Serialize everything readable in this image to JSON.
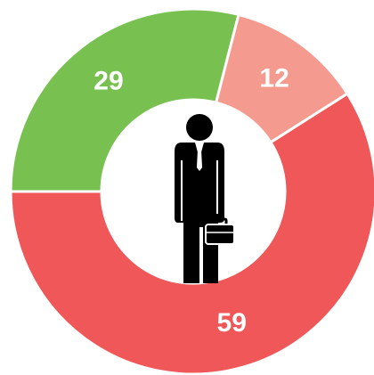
{
  "chart_data": {
    "type": "donut",
    "categories": [
      null,
      null,
      null
    ],
    "values": [
      29,
      12,
      59
    ],
    "colors": [
      "#78c050",
      "#f59a8f",
      "#ef5759"
    ]
  }
}
